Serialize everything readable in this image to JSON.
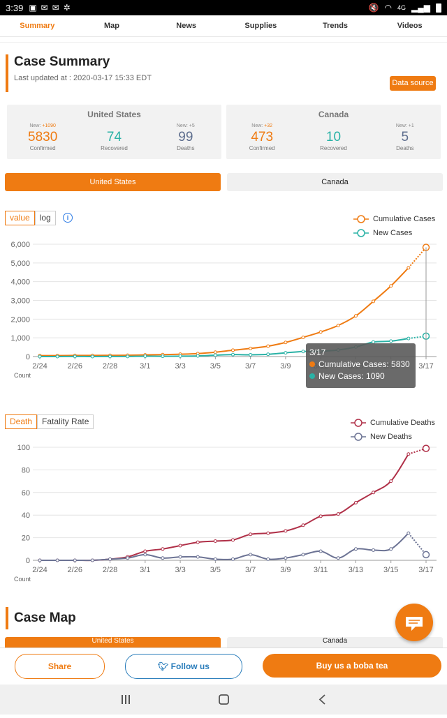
{
  "status_bar": {
    "time": "3:39",
    "battery": "4G"
  },
  "nav_tabs": [
    "Summary",
    "Map",
    "News",
    "Supplies",
    "Trends",
    "Videos"
  ],
  "case_summary": {
    "title": "Case Summary",
    "last_updated": "Last updated at : 2020-03-17 15:33 EDT",
    "data_source_label": "Data source"
  },
  "countries": [
    {
      "name": "United States",
      "confirmed": {
        "new_prefix": "New: ",
        "new_value": "+1090",
        "value": "5830",
        "label": "Confirmed"
      },
      "recovered": {
        "value": "74",
        "label": "Recovered"
      },
      "deaths": {
        "new_prefix": "New: ",
        "new_value": "+5",
        "value": "99",
        "label": "Deaths"
      }
    },
    {
      "name": "Canada",
      "confirmed": {
        "new_prefix": "New: ",
        "new_value": "+32",
        "value": "473",
        "label": "Confirmed"
      },
      "recovered": {
        "value": "10",
        "label": "Recovered"
      },
      "deaths": {
        "new_prefix": "New: ",
        "new_value": "+1",
        "value": "5",
        "label": "Deaths"
      }
    }
  ],
  "country_buttons": [
    "United States",
    "Canada"
  ],
  "cases_chart_toggle": [
    "value",
    "log"
  ],
  "deaths_chart_toggle": [
    "Death",
    "Fatality Rate"
  ],
  "tooltip": {
    "date": "3/17",
    "cumulative": "Cumulative Cases: 5830",
    "new": "New Cases: 1090"
  },
  "case_map": {
    "title": "Case Map",
    "tab_us": "United States",
    "tab_ca": "Canada"
  },
  "bottom_actions": {
    "share": "Share",
    "follow": "Follow us",
    "boba": "Buy us a boba tea"
  },
  "colors": {
    "accent": "#ef7b12",
    "teal": "#2ab2a6",
    "slate": "#5e6e8e",
    "crimson": "#b03048",
    "navy": "#6c7394"
  },
  "chart_data": [
    {
      "type": "line",
      "x": [
        "2/24",
        "2/25",
        "2/26",
        "2/27",
        "2/28",
        "2/29",
        "3/1",
        "3/2",
        "3/3",
        "3/4",
        "3/5",
        "3/6",
        "3/7",
        "3/8",
        "3/9",
        "3/10",
        "3/11",
        "3/12",
        "3/13",
        "3/14",
        "3/15",
        "3/16",
        "3/17"
      ],
      "x_tick_labels": [
        "2/24",
        "2/26",
        "2/28",
        "3/1",
        "3/3",
        "3/5",
        "3/7",
        "3/9",
        "3/11",
        "3/13",
        "3/15",
        "3/17"
      ],
      "series": [
        {
          "name": "Cumulative Cases",
          "values": [
            53,
            53,
            59,
            60,
            64,
            69,
            89,
            103,
            125,
            159,
            233,
            338,
            433,
            554,
            754,
            1025,
            1312,
            1663,
            2174,
            2951,
            3774,
            4740,
            5830
          ]
        },
        {
          "name": "New Cases",
          "values": [
            0,
            0,
            6,
            1,
            4,
            5,
            20,
            14,
            22,
            34,
            74,
            105,
            95,
            121,
            200,
            271,
            287,
            351,
            511,
            777,
            823,
            966,
            1090
          ]
        }
      ],
      "ylim": [
        0,
        6000
      ],
      "y_ticks": [
        "0",
        "1,000",
        "2,000",
        "3,000",
        "4,000",
        "5,000",
        "6,000"
      ],
      "ylabel": "Count",
      "legend": "top-right",
      "grid": true
    },
    {
      "type": "line",
      "x": [
        "2/24",
        "2/25",
        "2/26",
        "2/27",
        "2/28",
        "2/29",
        "3/1",
        "3/2",
        "3/3",
        "3/4",
        "3/5",
        "3/6",
        "3/7",
        "3/8",
        "3/9",
        "3/10",
        "3/11",
        "3/12",
        "3/13",
        "3/14",
        "3/15",
        "3/16",
        "3/17"
      ],
      "x_tick_labels": [
        "2/24",
        "2/26",
        "2/28",
        "3/1",
        "3/3",
        "3/5",
        "3/7",
        "3/9",
        "3/11",
        "3/13",
        "3/15",
        "3/17"
      ],
      "series": [
        {
          "name": "Cumulative Deaths",
          "values": [
            0,
            0,
            0,
            0,
            1,
            3,
            8,
            10,
            13,
            16,
            17,
            18,
            23,
            24,
            26,
            31,
            39,
            41,
            51,
            60,
            70,
            94,
            99
          ]
        },
        {
          "name": "New Deaths",
          "values": [
            0,
            0,
            0,
            0,
            1,
            2,
            5,
            2,
            3,
            3,
            1,
            1,
            5,
            1,
            2,
            5,
            8,
            2,
            10,
            9,
            10,
            24,
            5
          ]
        }
      ],
      "ylim": [
        0,
        100
      ],
      "y_ticks": [
        "0",
        "20",
        "40",
        "60",
        "80",
        "100"
      ],
      "ylabel": "Count",
      "legend": "top-right",
      "grid": true
    }
  ]
}
